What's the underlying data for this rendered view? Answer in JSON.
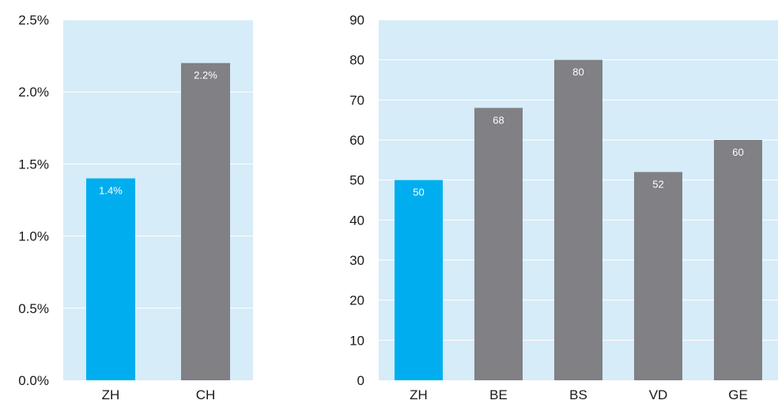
{
  "chart_data": [
    {
      "type": "bar",
      "categories": [
        "ZH",
        "CH"
      ],
      "values": [
        1.4,
        2.2
      ],
      "data_labels": [
        "1.4%",
        "2.2%"
      ],
      "ylim": [
        0,
        2.5
      ],
      "yticks": [
        0,
        0.5,
        1.0,
        1.5,
        2.0,
        2.5
      ],
      "ytick_labels": [
        "0.0%",
        "0.5%",
        "1.0%",
        "1.5%",
        "2.0%",
        "2.5%"
      ],
      "title": "",
      "xlabel": "",
      "ylabel": "",
      "grid": true,
      "legend": "none",
      "colors": {
        "highlight": "#00aeef",
        "default": "#808085",
        "plot_bg": "#d6ecf8",
        "grid": "#ffffff"
      }
    },
    {
      "type": "bar",
      "categories": [
        "ZH",
        "BE",
        "BS",
        "VD",
        "GE"
      ],
      "values": [
        50,
        68,
        80,
        52,
        60
      ],
      "data_labels": [
        "50",
        "68",
        "80",
        "52",
        "60"
      ],
      "ylim": [
        0,
        90
      ],
      "yticks": [
        0,
        10,
        20,
        30,
        40,
        50,
        60,
        70,
        80,
        90
      ],
      "ytick_labels": [
        "0",
        "10",
        "20",
        "30",
        "40",
        "50",
        "60",
        "70",
        "80",
        "90"
      ],
      "title": "",
      "xlabel": "",
      "ylabel": "",
      "grid": true,
      "legend": "none",
      "colors": {
        "highlight": "#00aeef",
        "default": "#808085",
        "plot_bg": "#d6ecf8",
        "grid": "#ffffff"
      }
    }
  ]
}
